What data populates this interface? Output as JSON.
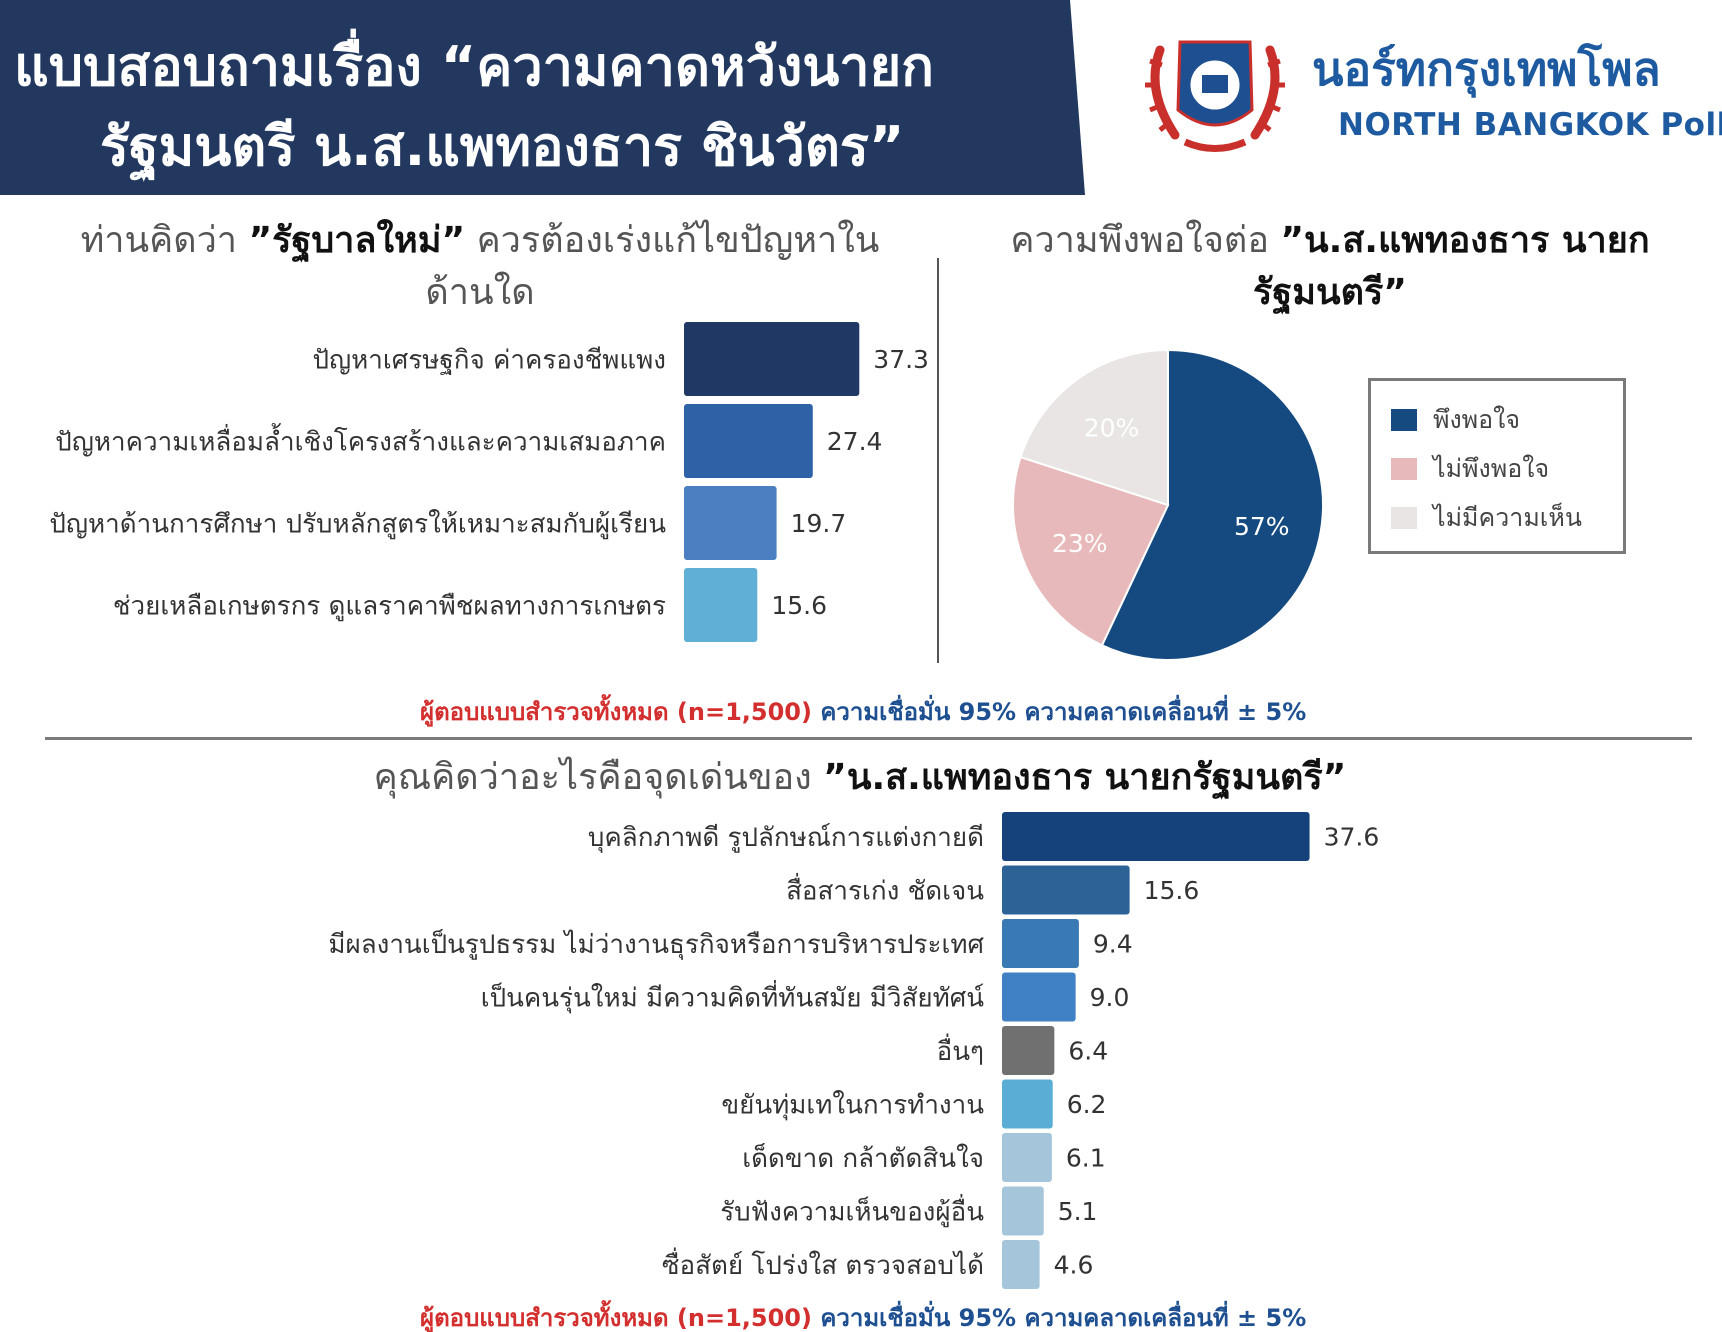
{
  "header": {
    "title_line1": "แบบสอบถามเรื่อง “ความคาดหวังนายก",
    "title_line2": "รัฐมนตรี น.ส.แพทองธาร ชินวัตร”",
    "brand_thai": "นอร์ทกรุงเทพโพล",
    "brand_english": "NORTH BANGKOK Poll"
  },
  "sections": {
    "problems_title_pre": "ท่านคิดว่า ",
    "problems_title_bold": "”รัฐบาลใหม่”",
    "problems_title_post": " ควรต้องเร่งแก้ไขปัญหาใน",
    "problems_title_line2": "ด้านใด",
    "satisfaction_title_pre": "ความพึงพอใจต่อ  ",
    "satisfaction_title_bold1": "”น.ส.แพทองธาร นายก",
    "satisfaction_title_bold2": "รัฐมนตรี”",
    "strengths_title_pre": "คุณคิดว่าอะไรคือจุดเด่นของ  ",
    "strengths_title_bold": "”น.ส.แพทองธาร นายกรัฐมนตรี”"
  },
  "notes": {
    "sample_text": "ผู้ตอบแบบสำรวจทั้งหมด (n=1,500)",
    "confidence_text": " ความเชื่อมั่น 95% ความคลาดเคลื่อนที่ ± 5%"
  },
  "chart_data": [
    {
      "type": "bar",
      "orientation": "horizontal",
      "categories": [
        "ปัญหาเศรษฐกิจ ค่าครองชีพแพง",
        "ปัญหาความเหลื่อมล้ำเชิงโครงสร้างและความเสมอภาค",
        "ปัญหาด้านการศึกษา ปรับหลักสูตรให้เหมาะสมกับผู้เรียน",
        "ช่วยเหลือเกษตรกร ดูแลราคาพืชผลทางการเกษตร"
      ],
      "values": [
        37.3,
        27.4,
        19.7,
        15.6
      ],
      "value_labels": [
        "37.3",
        "27.4",
        "19.7",
        "15.6"
      ],
      "colors": [
        "#203864",
        "#2e62a6",
        "#4a7fc1",
        "#5fafd6"
      ]
    },
    {
      "type": "pie",
      "slices": [
        {
          "label": "พึงพอใจ",
          "value": 57,
          "text": "57%",
          "color": "#154a80"
        },
        {
          "label": "ไม่พึงพอใจ",
          "value": 23,
          "text": "23%",
          "color": "#e8b9ba"
        },
        {
          "label": "ไม่มีความเห็น",
          "value": 20,
          "text": "20%",
          "color": "#e8e5e4"
        }
      ],
      "legend_position": "right"
    },
    {
      "type": "bar",
      "orientation": "horizontal",
      "categories": [
        "บุคลิกภาพดี รูปลักษณ์การแต่งกายดี",
        "สื่อสารเก่ง ชัดเจน",
        "มีผลงานเป็นรูปธรรม ไม่ว่างานธุรกิจหรือการบริหารประเทศ",
        "เป็นคนรุ่นใหม่ มีความคิดที่ทันสมัย มีวิสัยทัศน์",
        "อื่นๆ",
        "ขยันทุ่มเทในการทำงาน",
        "เด็ดขาด กล้าตัดสินใจ",
        "รับฟังความเห็นของผู้อื่น",
        "ซื่อสัตย์ โปร่งใส ตรวจสอบได้"
      ],
      "values": [
        37.6,
        15.6,
        9.4,
        9.0,
        6.4,
        6.2,
        6.1,
        5.1,
        4.6
      ],
      "value_labels": [
        "37.6",
        "15.6",
        "9.4",
        "9.0",
        "6.4",
        "6.2",
        "6.1",
        "5.1",
        "4.6"
      ],
      "colors": [
        "#15427a",
        "#2c6397",
        "#3a7ab4",
        "#3f81c4",
        "#707070",
        "#5aaed6",
        "#a5c6da",
        "#a5c6da",
        "#a5c6da"
      ]
    }
  ]
}
